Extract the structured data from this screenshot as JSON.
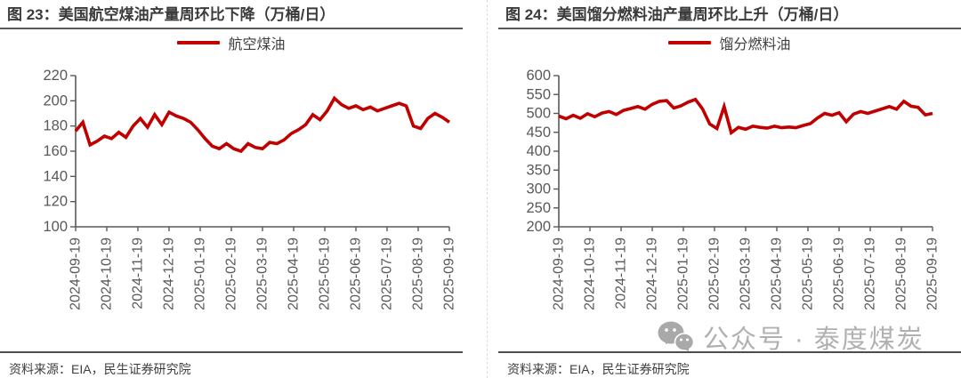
{
  "watermark": {
    "text": "公众号 · 泰度煤炭",
    "icon": "wechat-icon",
    "color": "#b0b0b0"
  },
  "colors": {
    "line_red": "#c00000",
    "axis_gray": "#595959",
    "title_gray": "#3b3b3b"
  },
  "chart_data": [
    {
      "type": "line",
      "title": "图 23：美国航空煤油产量周环比下降（万桶/日）",
      "legend": "航空煤油",
      "source": "资料来源：EIA，民生证券研究院",
      "line_color": "#c00000",
      "ylim": [
        100,
        220
      ],
      "ystep": 20,
      "grid": false,
      "legend_position": "top-center",
      "x_tick_labels": [
        "2024-09-19",
        "2024-10-19",
        "2024-11-19",
        "2024-12-19",
        "2025-01-19",
        "2025-02-19",
        "2025-03-19",
        "2025-04-19",
        "2025-05-19",
        "2025-06-19",
        "2025-07-19",
        "2025-08-19",
        "2025-09-19"
      ],
      "values": [
        176,
        183,
        165,
        168,
        172,
        170,
        175,
        171,
        180,
        186,
        179,
        189,
        181,
        191,
        188,
        186,
        183,
        177,
        170,
        164,
        162,
        166,
        162,
        160,
        166,
        163,
        162,
        167,
        166,
        169,
        174,
        177,
        181,
        189,
        185,
        192,
        202,
        197,
        194,
        196,
        193,
        195,
        192,
        194,
        196,
        198,
        196,
        180,
        178,
        186,
        190,
        187,
        183
      ]
    },
    {
      "type": "line",
      "title": "图 24：美国馏分燃料油产量周环比上升（万桶/日）",
      "legend": "馏分燃料油",
      "source": "资料来源：EIA，民生证券研究院",
      "line_color": "#c00000",
      "ylim": [
        200,
        600
      ],
      "ystep": 50,
      "grid": false,
      "legend_position": "top-center",
      "x_tick_labels": [
        "2024-09-19",
        "2024-10-19",
        "2024-11-19",
        "2024-12-19",
        "2025-01-19",
        "2025-02-19",
        "2025-03-19",
        "2025-04-19",
        "2025-05-19",
        "2025-06-19",
        "2025-07-19",
        "2025-08-19",
        "2025-09-19"
      ],
      "values": [
        493,
        486,
        495,
        487,
        499,
        491,
        501,
        505,
        497,
        508,
        513,
        518,
        511,
        524,
        532,
        534,
        514,
        520,
        530,
        537,
        512,
        472,
        460,
        518,
        449,
        463,
        458,
        466,
        463,
        461,
        466,
        462,
        464,
        462,
        468,
        473,
        488,
        500,
        495,
        502,
        478,
        498,
        505,
        500,
        506,
        512,
        518,
        511,
        532,
        519,
        516,
        496,
        500
      ]
    }
  ]
}
